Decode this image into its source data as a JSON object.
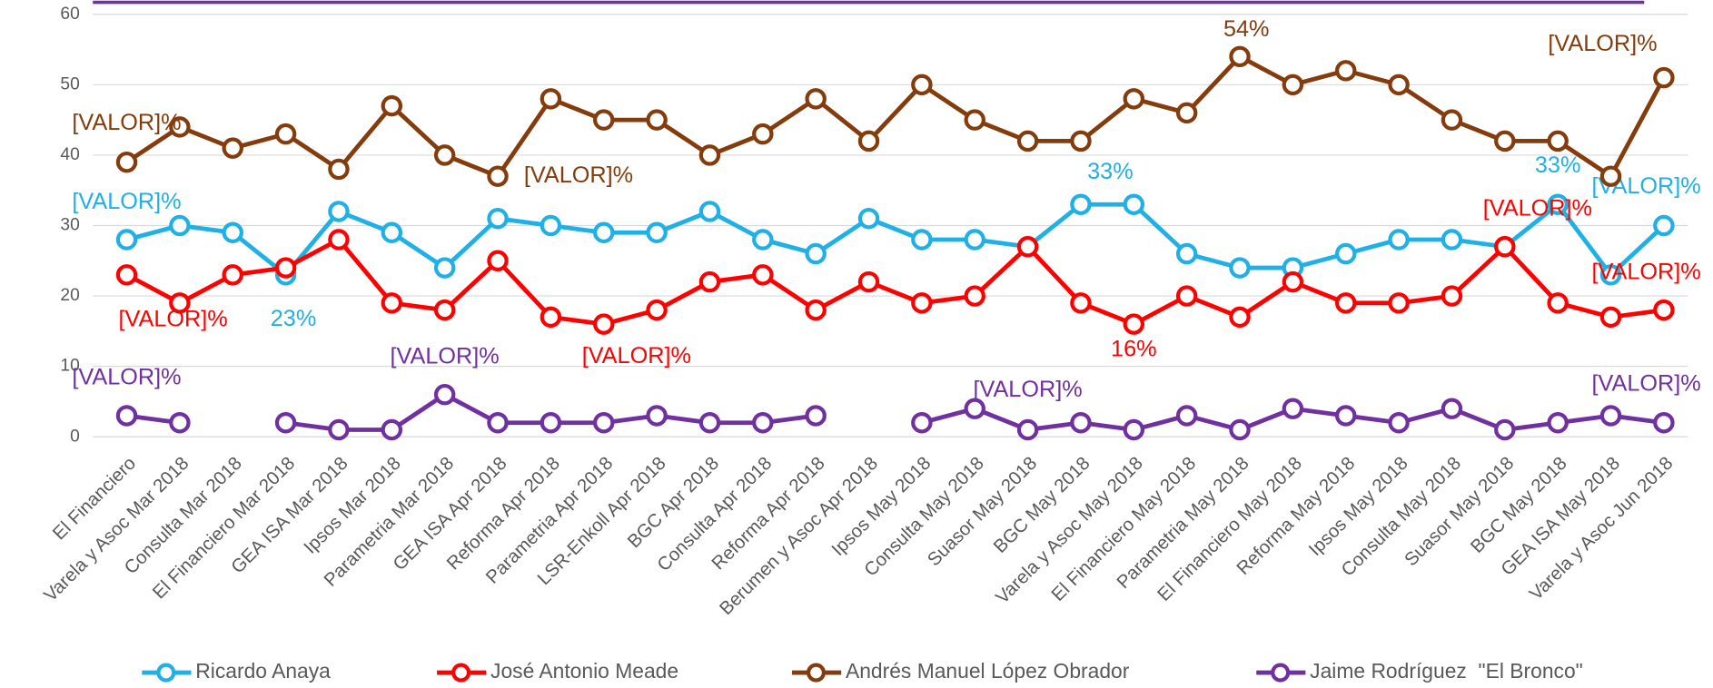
{
  "chart_data": {
    "type": "line",
    "categories": [
      "El Financiero",
      "Varela y Asoc Mar 2018",
      "Consulta Mar 2018",
      "El Financiero Mar 2018",
      "GEA ISA Mar 2018",
      "Ipsos Mar 2018",
      "Parametria Mar 2018",
      "GEA ISA Apr 2018",
      "Reforma Apr 2018",
      "Parametria Apr 2018",
      "LSR-Enkoll Apr 2018",
      "BGC Apr 2018",
      "Consulta Apr 2018",
      "Reforma Apr 2018",
      "Berumen y Asoc Apr 2018",
      "Ipsos May 2018",
      "Consulta May 2018",
      "Suasor May 2018",
      "BGC May 2018",
      "Varela y Asoc May 2018",
      "El Financiero May 2018",
      "Parametria May 2018",
      "El Financiero May 2018",
      "Reforma May 2018",
      "Ipsos May 2018",
      "Consulta May 2018",
      "Suasor May 2018",
      "BGC May 2018",
      "GEA ISA May 2018",
      "Varela y Asoc Jun 2018"
    ],
    "series": [
      {
        "name": "Ricardo Anaya",
        "color": "#1fb0e6",
        "values": [
          28,
          30,
          29,
          23,
          32,
          29,
          24,
          31,
          30,
          29,
          29,
          32,
          28,
          26,
          31,
          28,
          28,
          27,
          33,
          33,
          26,
          24,
          24,
          26,
          28,
          28,
          27,
          33,
          23,
          30
        ],
        "value_labels": [
          "[VALOR]%",
          null,
          null,
          "23%",
          null,
          null,
          null,
          null,
          null,
          null,
          null,
          null,
          null,
          null,
          null,
          null,
          null,
          null,
          "33%",
          null,
          null,
          null,
          null,
          null,
          null,
          null,
          null,
          "33%",
          null,
          "[VALOR]%"
        ]
      },
      {
        "name": "José Antonio Meade",
        "color": "#ff0000",
        "values": [
          23,
          19,
          23,
          24,
          28,
          19,
          18,
          25,
          17,
          16,
          18,
          22,
          23,
          18,
          22,
          19,
          20,
          27,
          19,
          16,
          20,
          17,
          22,
          19,
          19,
          20,
          27,
          19,
          17,
          18
        ],
        "value_labels": [
          null,
          "[VALOR]%",
          null,
          null,
          null,
          null,
          null,
          null,
          null,
          "[VALOR]%",
          null,
          null,
          null,
          null,
          null,
          null,
          null,
          null,
          null,
          "16%",
          null,
          null,
          null,
          null,
          null,
          null,
          "[VALOR]%",
          null,
          null,
          "[VALOR]%"
        ]
      },
      {
        "name": "Andrés Manuel López Obrador",
        "color": "#843c0c",
        "values": [
          39,
          44,
          41,
          43,
          38,
          47,
          40,
          37,
          48,
          45,
          45,
          40,
          43,
          48,
          42,
          50,
          45,
          42,
          42,
          48,
          46,
          54,
          50,
          52,
          50,
          45,
          42,
          42,
          37,
          51
        ],
        "value_labels": [
          "[VALOR]%",
          null,
          null,
          null,
          null,
          null,
          null,
          "[VALOR]%",
          null,
          null,
          null,
          null,
          null,
          null,
          null,
          null,
          null,
          null,
          null,
          null,
          null,
          "54%",
          null,
          null,
          null,
          null,
          null,
          null,
          null,
          "[VALOR]%"
        ]
      },
      {
        "name": "Jaime Rodríguez  \"El Bronco\"",
        "color": "#7030a0",
        "values": [
          3,
          2,
          null,
          2,
          1,
          1,
          6,
          2,
          2,
          2,
          3,
          2,
          2,
          3,
          null,
          2,
          4,
          1,
          2,
          1,
          3,
          1,
          4,
          3,
          2,
          4,
          1,
          2,
          3,
          2
        ],
        "value_labels": [
          "[VALOR]%",
          null,
          null,
          null,
          null,
          null,
          "[VALOR]%",
          null,
          null,
          null,
          null,
          null,
          null,
          null,
          null,
          null,
          null,
          "[VALOR]%",
          null,
          null,
          null,
          null,
          null,
          null,
          null,
          null,
          null,
          null,
          null,
          "[VALOR]%"
        ]
      }
    ],
    "ylim": [
      0,
      60
    ],
    "yticks": [
      0,
      10,
      20,
      30,
      40,
      50,
      60
    ],
    "grid": true,
    "legend": "bottom"
  }
}
